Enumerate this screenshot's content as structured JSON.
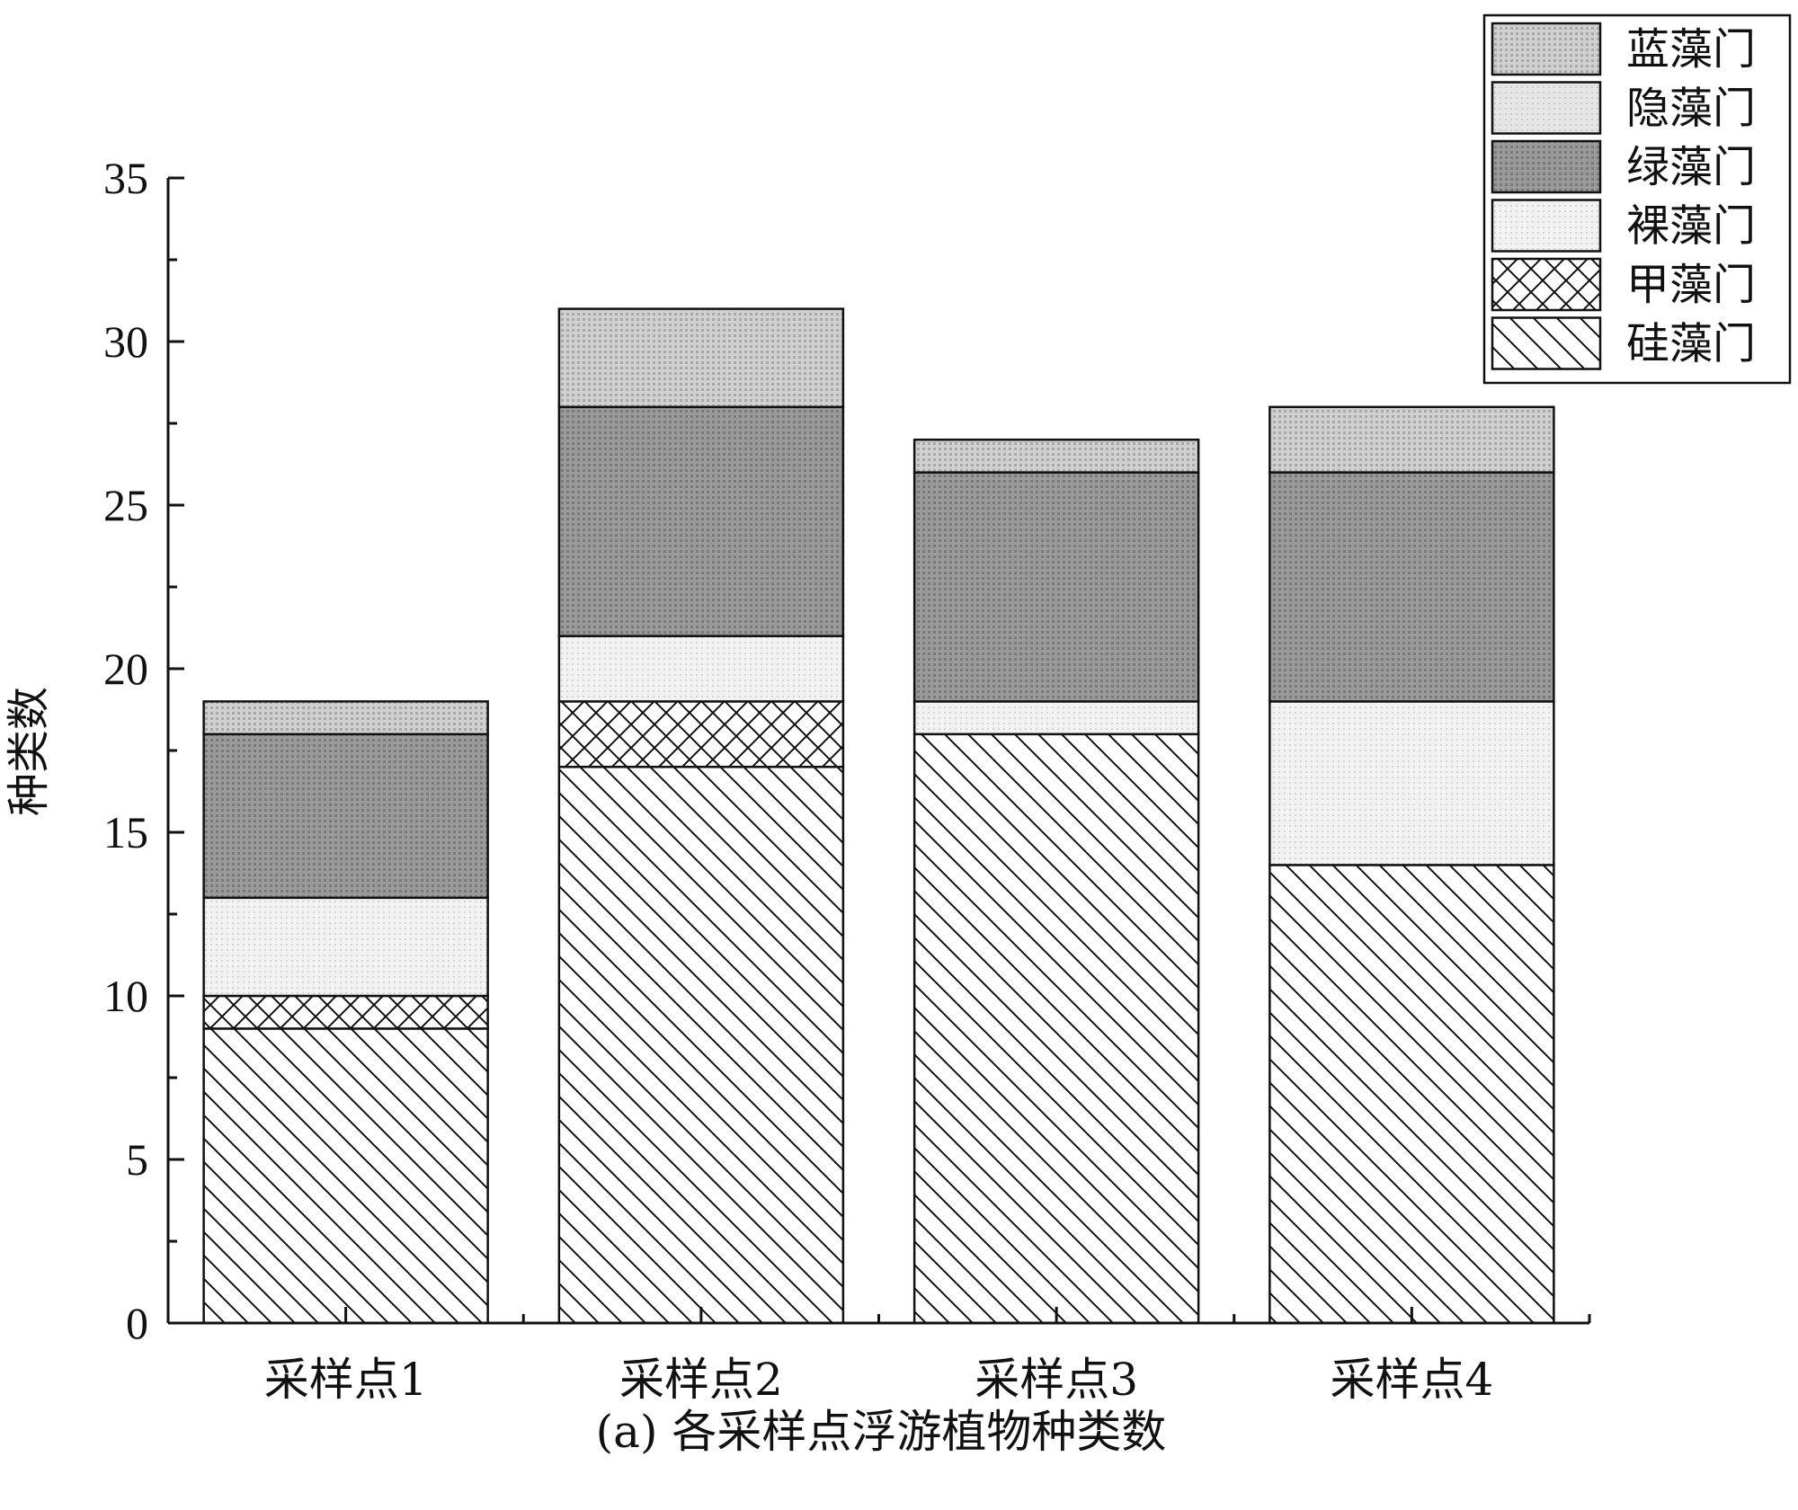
{
  "chart_data": {
    "type": "bar",
    "stacked": true,
    "categories": [
      "采样点1",
      "采样点2",
      "采样点3",
      "采样点4"
    ],
    "series": [
      {
        "name": "硅藻门",
        "values": [
          9,
          17,
          18,
          14
        ],
        "pattern": "diagonal"
      },
      {
        "name": "甲藻门",
        "values": [
          1,
          2,
          0,
          0
        ],
        "pattern": "crosshatch"
      },
      {
        "name": "裸藻门",
        "values": [
          3,
          2,
          1,
          5
        ],
        "pattern": "light-dots"
      },
      {
        "name": "绿藻门",
        "values": [
          5,
          7,
          7,
          7
        ],
        "pattern": "dark-dots"
      },
      {
        "name": "隐藻门",
        "values": [
          0,
          0,
          0,
          0
        ],
        "pattern": "very-light-dots"
      },
      {
        "name": "蓝藻门",
        "values": [
          1,
          3,
          1,
          2
        ],
        "pattern": "medium-dots"
      }
    ],
    "ylabel": "种类数",
    "ylim": [
      0,
      35
    ],
    "yticks": [
      0,
      5,
      10,
      15,
      20,
      25,
      30,
      35
    ],
    "caption": "(a) 各采样点浮游植物种类数",
    "legend_position": "top-right",
    "grid": false
  },
  "colors": {
    "axis": "#111111",
    "bar_outline": "#111111",
    "dark_fill": "#8f8f8f",
    "medium_fill": "#c4c4c4",
    "light_fill": "#ececec",
    "very_light_fill": "#e2e2e2"
  }
}
